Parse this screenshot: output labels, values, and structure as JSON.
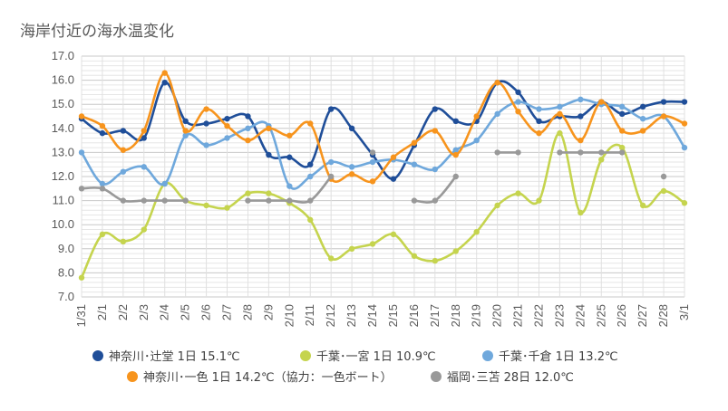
{
  "chart_data": {
    "type": "line",
    "title": "海岸付近の海水温変化",
    "xlabel": "",
    "ylabel": "",
    "categories": [
      "1/31",
      "2/1",
      "2/2",
      "2/3",
      "2/4",
      "2/5",
      "2/6",
      "2/7",
      "2/8",
      "2/9",
      "2/10",
      "2/11",
      "2/12",
      "2/13",
      "2/14",
      "2/15",
      "2/16",
      "2/17",
      "2/18",
      "2/19",
      "2/20",
      "2/21",
      "2/22",
      "2/23",
      "2/24",
      "2/25",
      "2/26",
      "2/27",
      "2/28",
      "3/1"
    ],
    "ylim": [
      7.0,
      17.0
    ],
    "yticks": [
      "7.0",
      "8.0",
      "9.0",
      "10.0",
      "11.0",
      "12.0",
      "13.0",
      "14.0",
      "15.0",
      "16.0",
      "17.0"
    ],
    "grid": true,
    "legend_position": "bottom",
    "series": [
      {
        "name": "神奈川･辻堂 1日 15.1℃",
        "color": "#1f4e99",
        "values": [
          14.4,
          13.8,
          13.9,
          13.6,
          15.9,
          14.3,
          14.2,
          14.4,
          14.5,
          12.9,
          12.8,
          12.5,
          14.8,
          14.0,
          12.9,
          11.9,
          13.3,
          14.8,
          14.3,
          14.3,
          15.9,
          15.5,
          14.3,
          14.5,
          14.5,
          15.1,
          14.6,
          14.9,
          15.1,
          15.1
        ]
      },
      {
        "name": "千葉･一宮 1日 10.9℃",
        "color": "#c5d44e",
        "values": [
          7.8,
          9.6,
          9.3,
          9.8,
          11.7,
          11.0,
          10.8,
          10.7,
          11.3,
          11.3,
          10.9,
          10.2,
          8.6,
          9.0,
          9.2,
          9.6,
          8.7,
          8.5,
          8.9,
          9.7,
          10.8,
          11.3,
          11.0,
          13.8,
          10.5,
          12.7,
          13.2,
          10.8,
          11.4,
          10.9
        ]
      },
      {
        "name": "千葉･千倉 1日 13.2℃",
        "color": "#6fa8dc",
        "values": [
          13.0,
          11.7,
          12.2,
          12.4,
          11.7,
          13.7,
          13.3,
          13.6,
          14.0,
          14.1,
          11.6,
          12.0,
          12.6,
          12.4,
          12.6,
          12.7,
          12.5,
          12.3,
          13.1,
          13.5,
          14.6,
          15.1,
          14.8,
          14.9,
          15.2,
          15.0,
          14.9,
          14.4,
          14.5,
          13.2
        ]
      },
      {
        "name": "神奈川･一色 1日 14.2℃（協力：一色ボート）",
        "color": "#f7941d",
        "values": [
          14.5,
          14.1,
          13.1,
          13.9,
          16.3,
          13.9,
          14.8,
          14.1,
          13.5,
          14.0,
          13.7,
          14.2,
          11.9,
          12.1,
          11.8,
          12.8,
          13.4,
          13.9,
          12.9,
          14.5,
          15.9,
          14.7,
          13.8,
          14.6,
          13.5,
          15.1,
          13.9,
          13.9,
          14.5,
          14.2
        ]
      },
      {
        "name": "福岡･三苫 28日 12.0℃",
        "color": "#999999",
        "values": [
          11.5,
          11.5,
          11.0,
          11.0,
          11.0,
          11.0,
          null,
          null,
          11.0,
          11.0,
          11.0,
          11.0,
          12.0,
          null,
          13.0,
          null,
          11.0,
          11.0,
          12.0,
          null,
          13.0,
          13.0,
          null,
          13.0,
          13.0,
          13.0,
          13.0,
          null,
          12.0,
          null
        ]
      }
    ]
  }
}
